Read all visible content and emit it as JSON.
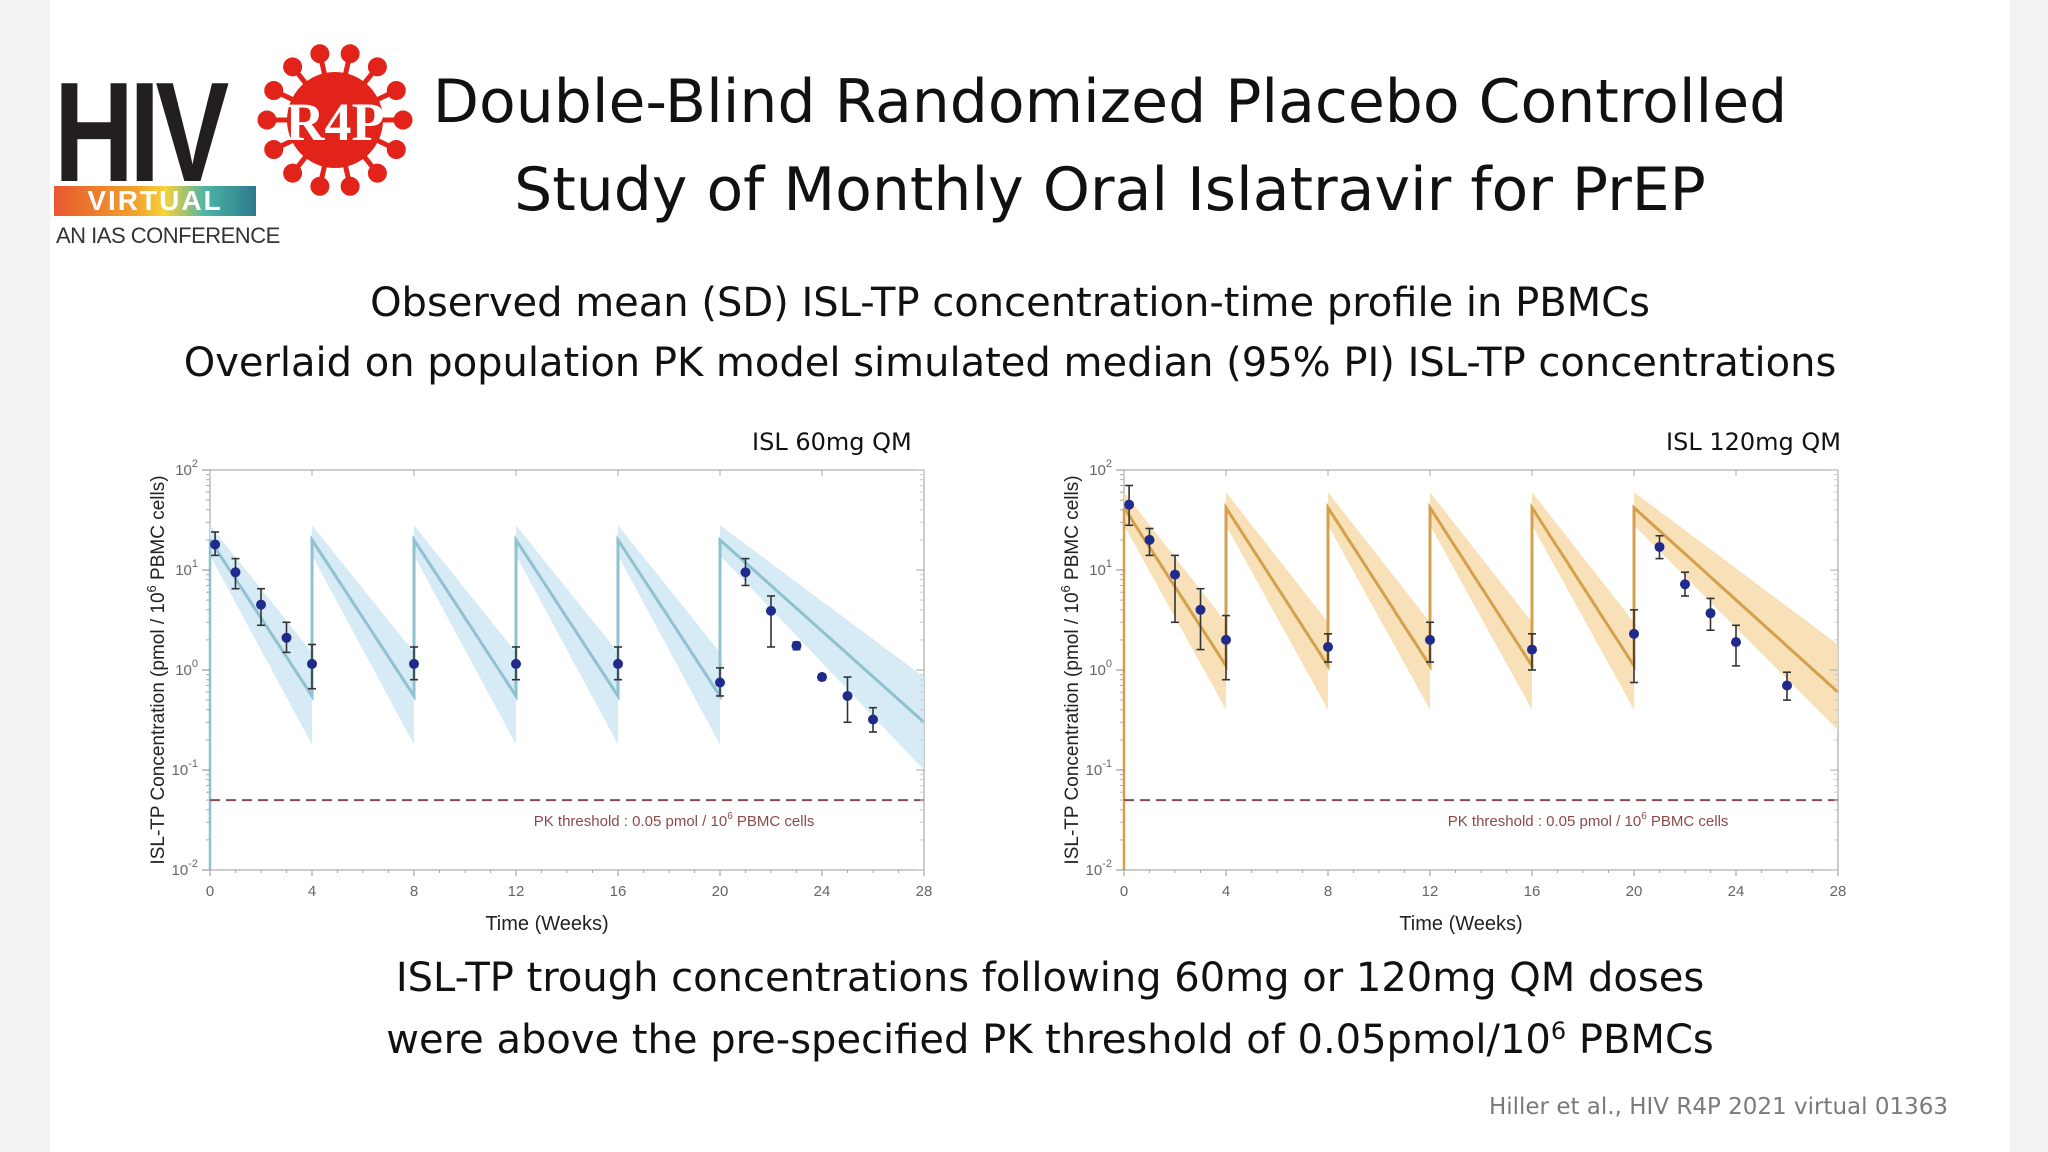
{
  "logo": {
    "wordmark": "HIV",
    "virtual": "VIRTUAL",
    "tagline": "AN IAS CONFERENCE",
    "badge": "R4P"
  },
  "title_lines": [
    "Double-Blind Randomized Placebo Controlled",
    "Study of Monthly Oral Islatravir for PrEP"
  ],
  "subtitle_lines": [
    "Observed mean (SD) ISL-TP concentration-time profile in PBMCs",
    "Overlaid on population PK model simulated median (95% PI) ISL-TP concentrations"
  ],
  "bottom_text": {
    "line1": "ISL-TP trough concentrations following 60mg or 120mg QM doses",
    "line2_before": "were above the pre-specified PK threshold of 0.05pmol/10",
    "line2_sup": "6",
    "line2_after": " PBMCs"
  },
  "citation": "Hiller et al., HIV R4P 2021 virtual 01363",
  "colors": {
    "observed_points": "#1f2a8c",
    "threshold_line": "#8b4a4a",
    "chart1_line": "#8fc1cf",
    "chart1_band": "#cfe8f4",
    "chart2_line": "#d4a04c",
    "chart2_band": "#f7dcab"
  },
  "chart_data": [
    {
      "type": "line",
      "panel_label": "ISL 60mg QM",
      "xlabel": "Time (Weeks)",
      "ylabel": "ISL-TP Concentration (pmol / 10^6 PBMC cells)",
      "ylabel_main": "ISL-TP Concentration (pmol / 10",
      "ylabel_sup": "6",
      "ylabel_end": " PBMC cells)",
      "xlim": [
        0,
        28
      ],
      "ylim": [
        0.01,
        100
      ],
      "y_scale": "log",
      "x_ticks": [
        0,
        4,
        8,
        12,
        16,
        20,
        24,
        28
      ],
      "y_ticks": [
        "10",
        "10",
        "10",
        "10",
        "10"
      ],
      "y_tick_exponents": [
        "-2",
        "-1",
        "0",
        "1",
        "2"
      ],
      "dose_times": [
        0,
        4,
        8,
        12,
        16,
        20
      ],
      "model": {
        "peak": 20,
        "trough": 0.55,
        "end_value": 0.3
      },
      "band": {
        "peak_lower": 14,
        "peak_upper": 28,
        "trough_lower": 0.18,
        "trough_upper": 1.5,
        "end_lower": 0.1,
        "end_upper": 0.85
      },
      "threshold": {
        "value": 0.05,
        "label_main": "PK threshold : 0.05 pmol / 10",
        "label_sup": "6",
        "label_end": " PBMC cells"
      },
      "observed": [
        {
          "x": 0.2,
          "y": 18,
          "lo": 14,
          "hi": 24
        },
        {
          "x": 1,
          "y": 9.5,
          "lo": 6.5,
          "hi": 13
        },
        {
          "x": 2,
          "y": 4.5,
          "lo": 2.8,
          "hi": 6.5
        },
        {
          "x": 3,
          "y": 2.1,
          "lo": 1.5,
          "hi": 3.0
        },
        {
          "x": 4,
          "y": 1.15,
          "lo": 0.65,
          "hi": 1.8
        },
        {
          "x": 8,
          "y": 1.15,
          "lo": 0.8,
          "hi": 1.7
        },
        {
          "x": 12,
          "y": 1.15,
          "lo": 0.8,
          "hi": 1.7
        },
        {
          "x": 16,
          "y": 1.15,
          "lo": 0.8,
          "hi": 1.7
        },
        {
          "x": 20,
          "y": 0.75,
          "lo": 0.55,
          "hi": 1.05
        },
        {
          "x": 21,
          "y": 9.5,
          "lo": 7,
          "hi": 13
        },
        {
          "x": 22,
          "y": 3.9,
          "lo": 1.7,
          "hi": 5.5
        },
        {
          "x": 23,
          "y": 1.75,
          "lo": 1.6,
          "hi": 1.9
        },
        {
          "x": 24,
          "y": 0.85,
          "lo": 0.8,
          "hi": 0.9
        },
        {
          "x": 25,
          "y": 0.55,
          "lo": 0.3,
          "hi": 0.85
        },
        {
          "x": 26,
          "y": 0.32,
          "lo": 0.24,
          "hi": 0.42
        }
      ]
    },
    {
      "type": "line",
      "panel_label": "ISL 120mg QM",
      "xlabel": "Time (Weeks)",
      "ylabel": "ISL-TP Concentration (pmol / 10^6 PBMC cells)",
      "ylabel_main": "ISL-TP Concentration (pmol / 10",
      "ylabel_sup": "6",
      "ylabel_end": " PBMC cells)",
      "xlim": [
        0,
        28
      ],
      "ylim": [
        0.01,
        100
      ],
      "y_scale": "log",
      "x_ticks": [
        0,
        4,
        8,
        12,
        16,
        20,
        24,
        28
      ],
      "y_ticks": [
        "10",
        "10",
        "10",
        "10",
        "10"
      ],
      "y_tick_exponents": [
        "-2",
        "-1",
        "0",
        "1",
        "2"
      ],
      "dose_times": [
        0,
        4,
        8,
        12,
        16,
        20
      ],
      "model": {
        "peak": 42,
        "trough": 1.1,
        "end_value": 0.6
      },
      "band": {
        "peak_lower": 28,
        "peak_upper": 60,
        "trough_lower": 0.4,
        "trough_upper": 3.0,
        "end_lower": 0.25,
        "end_upper": 1.8
      },
      "threshold": {
        "value": 0.05,
        "label_main": "PK threshold : 0.05 pmol / 10",
        "label_sup": "6",
        "label_end": " PBMC cells"
      },
      "observed": [
        {
          "x": 0.2,
          "y": 45,
          "lo": 28,
          "hi": 70
        },
        {
          "x": 1,
          "y": 20,
          "lo": 14,
          "hi": 26
        },
        {
          "x": 2,
          "y": 9,
          "lo": 3,
          "hi": 14
        },
        {
          "x": 3,
          "y": 4,
          "lo": 1.6,
          "hi": 6.5
        },
        {
          "x": 4,
          "y": 2,
          "lo": 0.8,
          "hi": 3.5
        },
        {
          "x": 8,
          "y": 1.7,
          "lo": 1.2,
          "hi": 2.3
        },
        {
          "x": 12,
          "y": 2,
          "lo": 1.2,
          "hi": 3.0
        },
        {
          "x": 16,
          "y": 1.6,
          "lo": 1.0,
          "hi": 2.3
        },
        {
          "x": 20,
          "y": 2.3,
          "lo": 0.75,
          "hi": 4.0
        },
        {
          "x": 21,
          "y": 17,
          "lo": 13,
          "hi": 22
        },
        {
          "x": 22,
          "y": 7.2,
          "lo": 5.5,
          "hi": 9.5
        },
        {
          "x": 23,
          "y": 3.7,
          "lo": 2.5,
          "hi": 5.2
        },
        {
          "x": 24,
          "y": 1.9,
          "lo": 1.1,
          "hi": 2.8
        },
        {
          "x": 26,
          "y": 0.7,
          "lo": 0.5,
          "hi": 0.95
        }
      ]
    }
  ]
}
